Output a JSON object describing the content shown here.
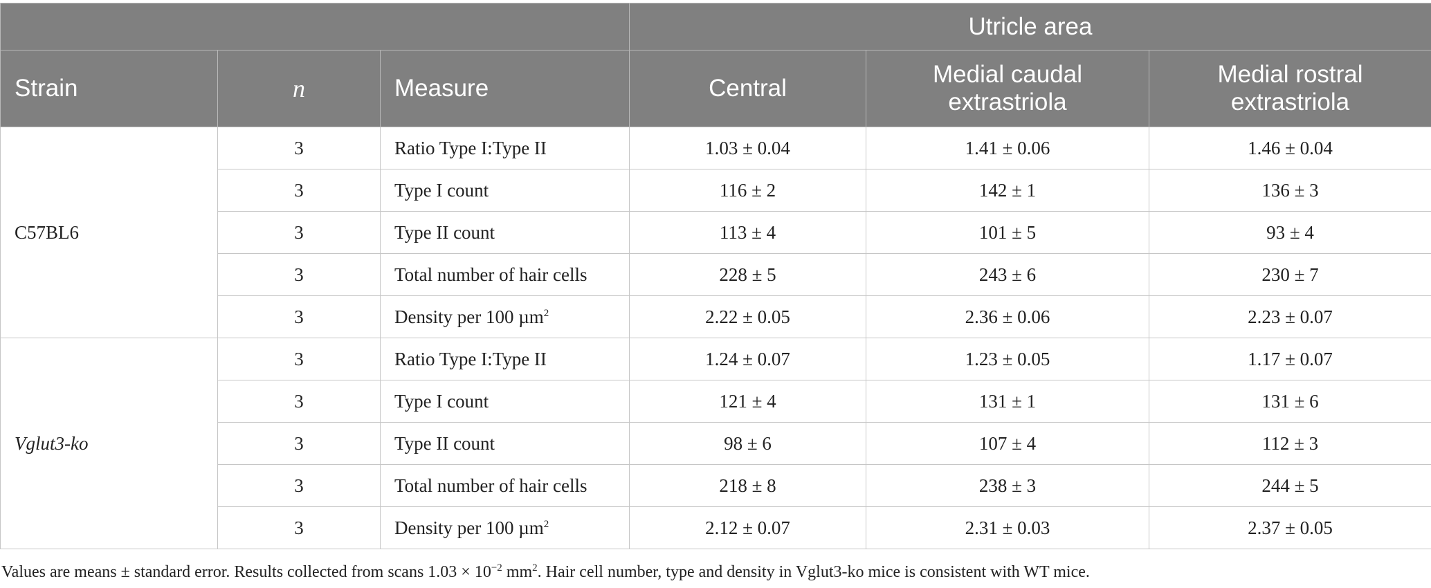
{
  "header": {
    "group_label": "Utricle area",
    "strain": "Strain",
    "n": "n",
    "measure": "Measure",
    "central": "Central",
    "mce_line1": "Medial caudal",
    "mce_line2": "extrastriola",
    "mre_line1": "Medial rostral",
    "mre_line2": "extrastriola"
  },
  "groups": [
    {
      "strain": "C57BL6",
      "rows": [
        {
          "n": "3",
          "measure": "Ratio Type I:Type II",
          "central": "1.03 ± 0.04",
          "mce": "1.41 ± 0.06",
          "mre": "1.46 ± 0.04"
        },
        {
          "n": "3",
          "measure": "Type I count",
          "central": "116 ± 2",
          "mce": "142 ± 1",
          "mre": "136 ± 3"
        },
        {
          "n": "3",
          "measure": "Type II count",
          "central": "113 ± 4",
          "mce": "101 ± 5",
          "mre": "93 ± 4"
        },
        {
          "n": "3",
          "measure": "Total number of hair cells",
          "central": "228 ± 5",
          "mce": "243 ± 6",
          "mre": "230 ± 7"
        },
        {
          "n": "3",
          "measure": "Density per 100 µm",
          "measure_sup": "2",
          "central": "2.22 ± 0.05",
          "mce": "2.36 ± 0.06",
          "mre": "2.23 ± 0.07"
        }
      ]
    },
    {
      "strain": "Vglut3-ko",
      "rows": [
        {
          "n": "3",
          "measure": "Ratio Type I:Type II",
          "central": "1.24 ± 0.07",
          "mce": "1.23 ± 0.05",
          "mre": "1.17 ± 0.07"
        },
        {
          "n": "3",
          "measure": "Type I count",
          "central": "121 ± 4",
          "mce": "131 ± 1",
          "mre": "131 ± 6"
        },
        {
          "n": "3",
          "measure": "Type II count",
          "central": "98 ± 6",
          "mce": "107 ± 4",
          "mre": "112 ± 3"
        },
        {
          "n": "3",
          "measure": "Total number of hair cells",
          "central": "218 ± 8",
          "mce": "238 ± 3",
          "mre": "244 ± 5"
        },
        {
          "n": "3",
          "measure": "Density per 100 µm",
          "measure_sup": "2",
          "central": "2.12 ± 0.07",
          "mce": "2.31 ± 0.03",
          "mre": "2.37 ± 0.05"
        }
      ]
    }
  ],
  "footnote": {
    "part1": "Values are means ± standard error. Results collected from scans 1.03 × 10",
    "exp": "−2",
    "part2": " mm",
    "unit_sup": "2",
    "part3": ". Hair cell number, type and density in Vglut3-ko mice is consistent with WT mice."
  },
  "colors": {
    "header_bg": "#808080",
    "header_text": "#ffffff",
    "grid": "#c6c6c6",
    "body_text": "#222222"
  }
}
